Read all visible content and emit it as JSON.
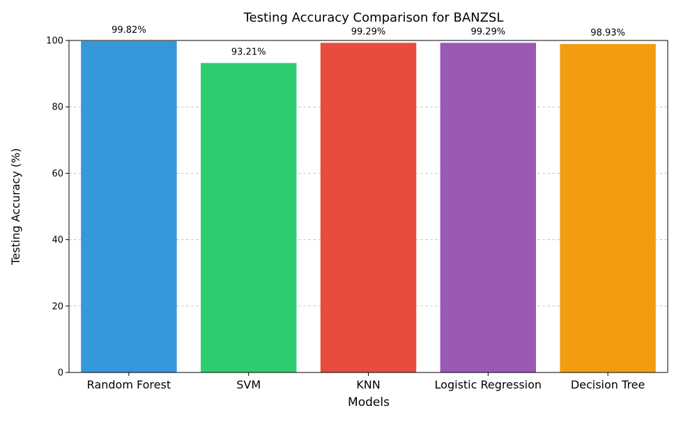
{
  "chart_data": {
    "type": "bar",
    "title": "Testing Accuracy Comparison for BANZSL",
    "xlabel": "Models",
    "ylabel": "Testing Accuracy (%)",
    "categories": [
      "Random Forest",
      "SVM",
      "KNN",
      "Logistic Regression",
      "Decision Tree"
    ],
    "values": [
      99.82,
      93.21,
      99.29,
      99.29,
      98.93
    ],
    "value_labels": [
      "99.82%",
      "93.21%",
      "99.29%",
      "99.29%",
      "98.93%"
    ],
    "colors": [
      "#3498db",
      "#2ecc71",
      "#e74c3c",
      "#9b59b6",
      "#f39c12"
    ],
    "ylim": [
      0,
      100
    ],
    "yticks": [
      0,
      20,
      40,
      60,
      80,
      100
    ],
    "grid": "y-dashed",
    "legend": "none"
  }
}
